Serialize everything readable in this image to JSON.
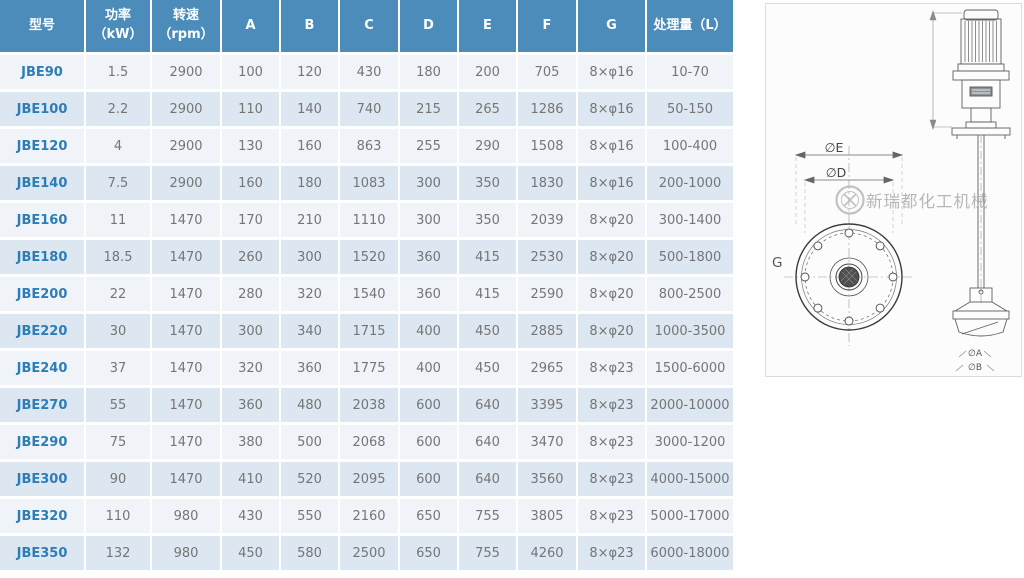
{
  "table": {
    "columns": [
      {
        "label": "型号",
        "sub": ""
      },
      {
        "label": "功率",
        "sub": "（kW）"
      },
      {
        "label": "转速",
        "sub": "（rpm）"
      },
      {
        "label": "A",
        "sub": ""
      },
      {
        "label": "B",
        "sub": ""
      },
      {
        "label": "C",
        "sub": ""
      },
      {
        "label": "D",
        "sub": ""
      },
      {
        "label": "E",
        "sub": ""
      },
      {
        "label": "F",
        "sub": ""
      },
      {
        "label": "G",
        "sub": ""
      },
      {
        "label": "处理量（L）",
        "sub": ""
      }
    ],
    "rows": [
      [
        "JBE90",
        "1.5",
        "2900",
        "100",
        "120",
        "430",
        "180",
        "200",
        "705",
        "8×φ16",
        "10-70"
      ],
      [
        "JBE100",
        "2.2",
        "2900",
        "110",
        "140",
        "740",
        "215",
        "265",
        "1286",
        "8×φ16",
        "50-150"
      ],
      [
        "JBE120",
        "4",
        "2900",
        "130",
        "160",
        "863",
        "255",
        "290",
        "1508",
        "8×φ16",
        "100-400"
      ],
      [
        "JBE140",
        "7.5",
        "2900",
        "160",
        "180",
        "1083",
        "300",
        "350",
        "1830",
        "8×φ16",
        "200-1000"
      ],
      [
        "JBE160",
        "11",
        "1470",
        "170",
        "210",
        "1110",
        "300",
        "350",
        "2039",
        "8×φ20",
        "300-1400"
      ],
      [
        "JBE180",
        "18.5",
        "1470",
        "260",
        "300",
        "1520",
        "360",
        "415",
        "2530",
        "8×φ20",
        "500-1800"
      ],
      [
        "JBE200",
        "22",
        "1470",
        "280",
        "320",
        "1540",
        "360",
        "415",
        "2590",
        "8×φ20",
        "800-2500"
      ],
      [
        "JBE220",
        "30",
        "1470",
        "300",
        "340",
        "1715",
        "400",
        "450",
        "2885",
        "8×φ20",
        "1000-3500"
      ],
      [
        "JBE240",
        "37",
        "1470",
        "320",
        "360",
        "1775",
        "400",
        "450",
        "2965",
        "8×φ23",
        "1500-6000"
      ],
      [
        "JBE270",
        "55",
        "1470",
        "360",
        "480",
        "2038",
        "600",
        "640",
        "3395",
        "8×φ23",
        "2000-10000"
      ],
      [
        "JBE290",
        "75",
        "1470",
        "380",
        "500",
        "2068",
        "600",
        "640",
        "3470",
        "8×φ23",
        "3000-1200"
      ],
      [
        "JBE300",
        "90",
        "1470",
        "410",
        "520",
        "2095",
        "600",
        "640",
        "3560",
        "8×φ23",
        "4000-15000"
      ],
      [
        "JBE320",
        "110",
        "980",
        "430",
        "550",
        "2160",
        "650",
        "755",
        "3805",
        "8×φ23",
        "5000-17000"
      ],
      [
        "JBE350",
        "132",
        "980",
        "450",
        "580",
        "2500",
        "650",
        "755",
        "4260",
        "8×φ23",
        "6000-18000"
      ]
    ],
    "colors": {
      "header_bg": "#4b8cba",
      "header_text": "#ffffff",
      "row_light": "#f0f4f9",
      "row_dark": "#dce7f1",
      "model_text": "#2d7db6",
      "value_text": "#757575"
    }
  },
  "drawing": {
    "watermark": "新瑞都化工机械",
    "labels": {
      "dim_e": "∅E",
      "dim_d": "∅D",
      "dim_g": "G",
      "dim_a": "∅A",
      "dim_b": "∅B"
    }
  }
}
